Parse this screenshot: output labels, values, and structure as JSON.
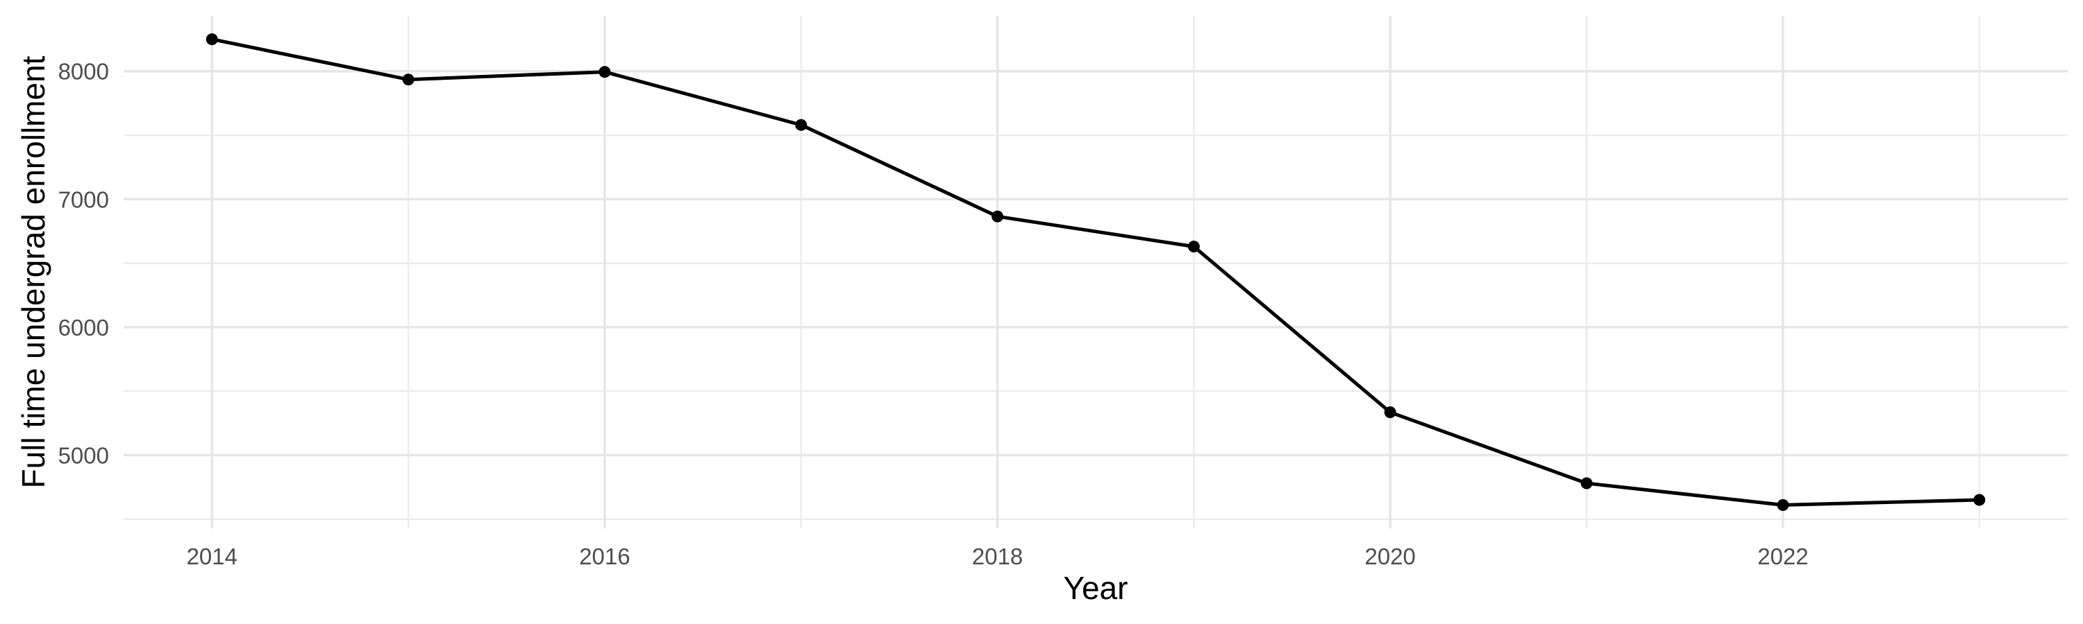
{
  "chart_data": {
    "type": "line",
    "title": "",
    "xlabel": "Year",
    "ylabel": "Full time undergrad enrollment",
    "x": [
      2014,
      2015,
      2016,
      2017,
      2018,
      2019,
      2020,
      2021,
      2022,
      2023
    ],
    "values": [
      8250,
      7935,
      7995,
      7580,
      6865,
      6630,
      5335,
      4780,
      4610,
      4650
    ],
    "series_name": "Full time undergrad enrollment",
    "x_tick_labels": [
      "2014",
      "2016",
      "2018",
      "2020",
      "2022"
    ],
    "x_ticks": [
      2014,
      2016,
      2018,
      2020,
      2022
    ],
    "x_minor_ticks": [
      2015,
      2017,
      2019,
      2021,
      2023
    ],
    "y_tick_labels": [
      "5000",
      "6000",
      "7000",
      "8000"
    ],
    "y_ticks": [
      5000,
      6000,
      7000,
      8000
    ],
    "y_minor_ticks": [
      4500,
      5500,
      6500,
      7500
    ],
    "xlim": [
      2013.55,
      2023.45
    ],
    "ylim": [
      4428,
      8432
    ],
    "grid": "major and minor, light gray on white",
    "legend": false,
    "colors": {
      "line": "#000000",
      "point": "#000000",
      "grid_major": "#E6E6E6",
      "grid_minor": "#ECECEC",
      "tick_text": "#4D4D4D",
      "axis_title": "#000000",
      "background": "#FFFFFF"
    }
  }
}
